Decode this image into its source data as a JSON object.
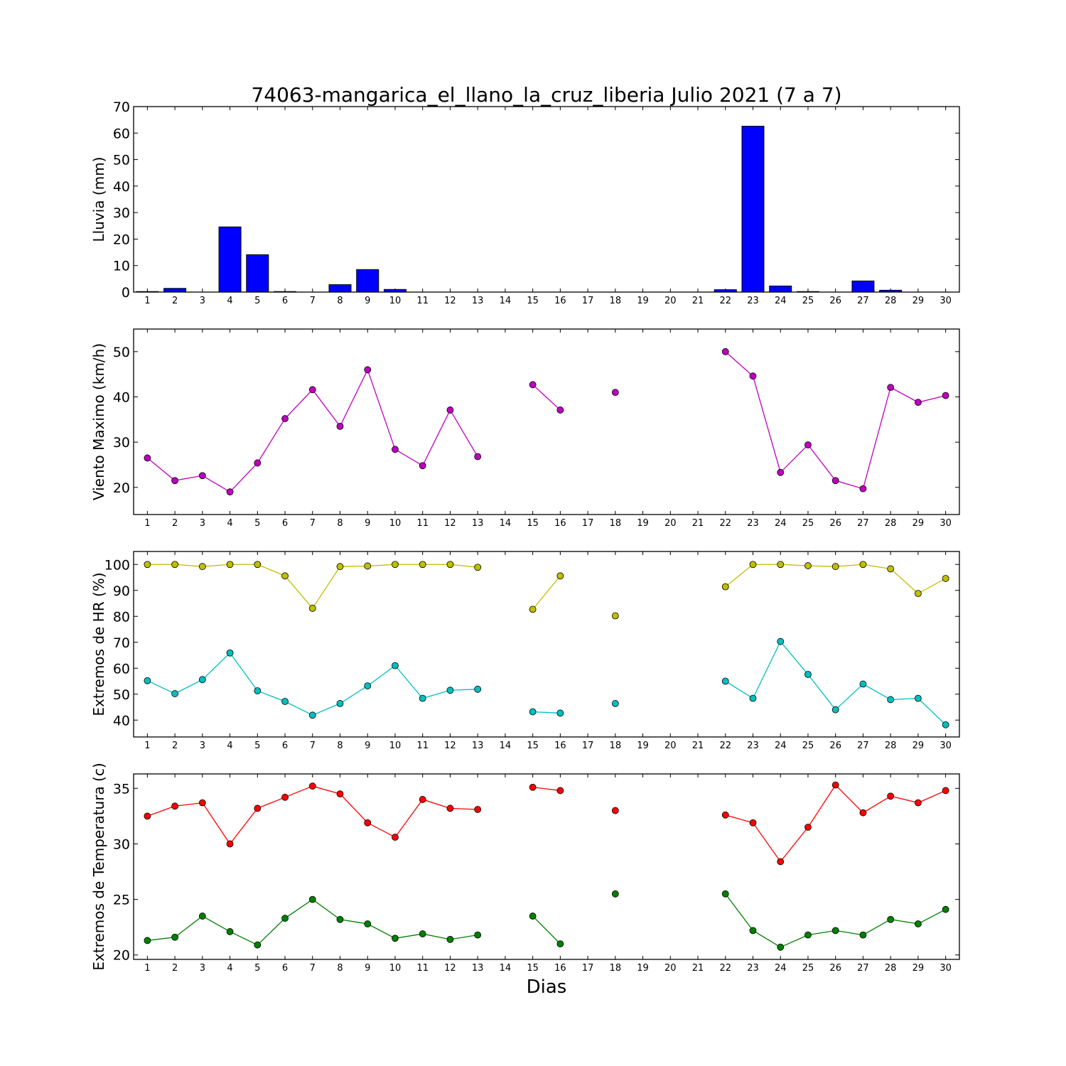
{
  "title": "74063-mangarica_el_llano_la_cruz_liberia Julio 2021  (7 a 7)",
  "xlabel": "Dias",
  "days": [
    1,
    2,
    3,
    4,
    5,
    6,
    7,
    8,
    9,
    10,
    11,
    12,
    13,
    14,
    15,
    16,
    17,
    18,
    19,
    20,
    21,
    22,
    23,
    24,
    25,
    26,
    27,
    28,
    29,
    30
  ],
  "chart_data": [
    {
      "type": "bar",
      "ylabel": "Lluvia (mm)",
      "ylim": [
        0,
        70
      ],
      "yticks": [
        0,
        10,
        20,
        30,
        40,
        50,
        60,
        70
      ],
      "xlim": [
        0.5,
        30.5
      ],
      "categories": [
        1,
        2,
        3,
        4,
        5,
        6,
        7,
        8,
        9,
        10,
        11,
        12,
        13,
        14,
        15,
        16,
        17,
        18,
        19,
        20,
        21,
        22,
        23,
        24,
        25,
        26,
        27,
        28,
        29,
        30
      ],
      "series": [
        {
          "color": "#0000ff",
          "values": [
            0.2,
            1.4,
            0,
            24.6,
            14.1,
            0.2,
            0,
            2.8,
            8.5,
            1,
            0,
            0,
            0,
            0,
            0,
            0,
            0,
            0,
            0,
            0,
            0,
            0.9,
            62.6,
            2.3,
            0.2,
            0,
            4.2,
            0.7,
            0,
            0
          ]
        }
      ]
    },
    {
      "type": "line",
      "ylabel": "Viento Maximo (km/h)",
      "ylim": [
        14,
        55
      ],
      "yticks": [
        20,
        30,
        40,
        50
      ],
      "xlim": [
        0.5,
        30.5
      ],
      "x": [
        1,
        2,
        3,
        4,
        5,
        6,
        7,
        8,
        9,
        10,
        11,
        12,
        13,
        14,
        15,
        16,
        17,
        18,
        19,
        20,
        21,
        22,
        23,
        24,
        25,
        26,
        27,
        28,
        29,
        30
      ],
      "series": [
        {
          "color": "#bf00bf",
          "values": [
            26.5,
            21.5,
            22.6,
            19,
            25.4,
            35.2,
            41.6,
            33.5,
            46,
            28.4,
            24.8,
            37.1,
            26.8,
            null,
            42.7,
            37.1,
            null,
            41,
            null,
            null,
            null,
            50,
            44.6,
            23.3,
            29.4,
            21.5,
            19.7,
            42.1,
            38.8,
            40.3
          ]
        }
      ]
    },
    {
      "type": "line",
      "ylabel": "Extremos de HR (%)",
      "ylim": [
        33.5,
        105
      ],
      "yticks": [
        40,
        50,
        60,
        70,
        80,
        90,
        100
      ],
      "xlim": [
        0.5,
        30.5
      ],
      "x": [
        1,
        2,
        3,
        4,
        5,
        6,
        7,
        8,
        9,
        10,
        11,
        12,
        13,
        14,
        15,
        16,
        17,
        18,
        19,
        20,
        21,
        22,
        23,
        24,
        25,
        26,
        27,
        28,
        29,
        30
      ],
      "series": [
        {
          "color": "#bfbf00",
          "values": [
            100,
            100,
            99.2,
            100,
            100,
            95.6,
            83.1,
            99.2,
            99.4,
            100,
            100,
            100,
            98.9,
            null,
            82.7,
            95.6,
            null,
            80.2,
            null,
            null,
            null,
            91.4,
            100,
            100,
            99.5,
            99.2,
            100,
            98.3,
            88.8,
            94.6
          ]
        },
        {
          "color": "#00bfbf",
          "values": [
            55.2,
            50.2,
            55.6,
            65.9,
            51.3,
            47.2,
            41.9,
            46.4,
            53.2,
            61,
            48.4,
            51.5,
            51.9,
            null,
            43.2,
            42.7,
            null,
            46.4,
            null,
            null,
            null,
            55,
            48.4,
            70.3,
            57.6,
            44,
            53.9,
            47.9,
            48.4,
            38.2
          ]
        }
      ]
    },
    {
      "type": "line",
      "ylabel": "Extremos de Temperatura (c)",
      "ylim": [
        19.6,
        36.3
      ],
      "yticks": [
        20,
        25,
        30,
        35
      ],
      "xlim": [
        0.5,
        30.5
      ],
      "x": [
        1,
        2,
        3,
        4,
        5,
        6,
        7,
        8,
        9,
        10,
        11,
        12,
        13,
        14,
        15,
        16,
        17,
        18,
        19,
        20,
        21,
        22,
        23,
        24,
        25,
        26,
        27,
        28,
        29,
        30
      ],
      "series": [
        {
          "color": "#ff0000",
          "values": [
            32.5,
            33.4,
            33.7,
            30,
            33.2,
            34.2,
            35.2,
            34.5,
            31.9,
            30.6,
            34,
            33.2,
            33.1,
            null,
            35.1,
            34.8,
            null,
            33,
            null,
            null,
            null,
            32.6,
            31.9,
            28.4,
            31.5,
            35.3,
            32.8,
            34.3,
            33.7,
            34.8
          ]
        },
        {
          "color": "#008000",
          "values": [
            21.3,
            21.6,
            23.5,
            22.1,
            20.9,
            23.3,
            25,
            23.2,
            22.8,
            21.5,
            21.9,
            21.4,
            21.8,
            null,
            23.5,
            21,
            null,
            25.5,
            null,
            null,
            null,
            25.5,
            22.2,
            20.7,
            21.8,
            22.2,
            21.8,
            23.2,
            22.8,
            24.1
          ]
        }
      ]
    }
  ]
}
